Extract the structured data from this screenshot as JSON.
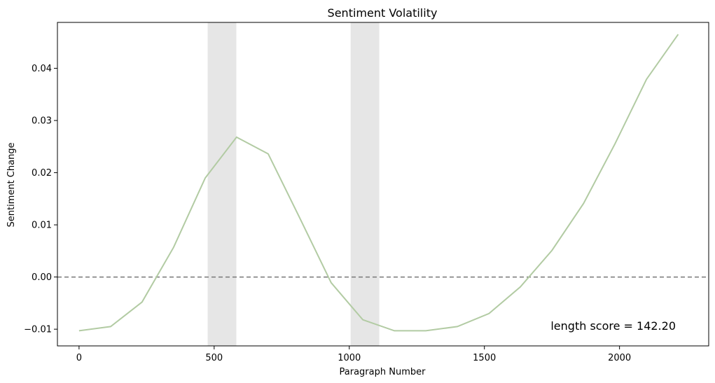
{
  "chart_data": {
    "type": "line",
    "title": "Sentiment Volatility",
    "xlabel": "Paragraph Number",
    "ylabel": "Sentiment Change",
    "xlim": [
      -80,
      2330
    ],
    "ylim": [
      -0.0132,
      0.0488
    ],
    "x_ticks": [
      0,
      500,
      1000,
      1500,
      2000
    ],
    "x_tick_labels": [
      "0",
      "500",
      "1000",
      "1500",
      "2000"
    ],
    "y_ticks": [
      -0.01,
      0.0,
      0.01,
      0.02,
      0.03,
      0.04
    ],
    "y_tick_labels": [
      "−0.01",
      "0.00",
      "0.01",
      "0.02",
      "0.03",
      "0.04"
    ],
    "grid": false,
    "series": [
      {
        "color": "#b2cba3",
        "x": [
          0,
          117,
          233,
          350,
          467,
          583,
          700,
          817,
          933,
          1050,
          1167,
          1283,
          1400,
          1517,
          1633,
          1750,
          1867,
          1983,
          2100,
          2217
        ],
        "y": [
          -0.0103,
          -0.0095,
          -0.0048,
          0.0057,
          0.019,
          0.0268,
          0.0236,
          0.0113,
          -0.0011,
          -0.0082,
          -0.0103,
          -0.0103,
          -0.0095,
          -0.007,
          -0.0019,
          0.0051,
          0.0141,
          0.0255,
          0.0379,
          0.0465
        ]
      }
    ],
    "reference_line": {
      "y": 0.0,
      "style": "dashed",
      "color": "#808080"
    },
    "shaded_regions": [
      {
        "x0": 476,
        "x1": 582,
        "color": "#e6e6e6"
      },
      {
        "x0": 1005,
        "x1": 1111,
        "color": "#e6e6e6"
      }
    ],
    "annotation": "length score = 142.20"
  }
}
